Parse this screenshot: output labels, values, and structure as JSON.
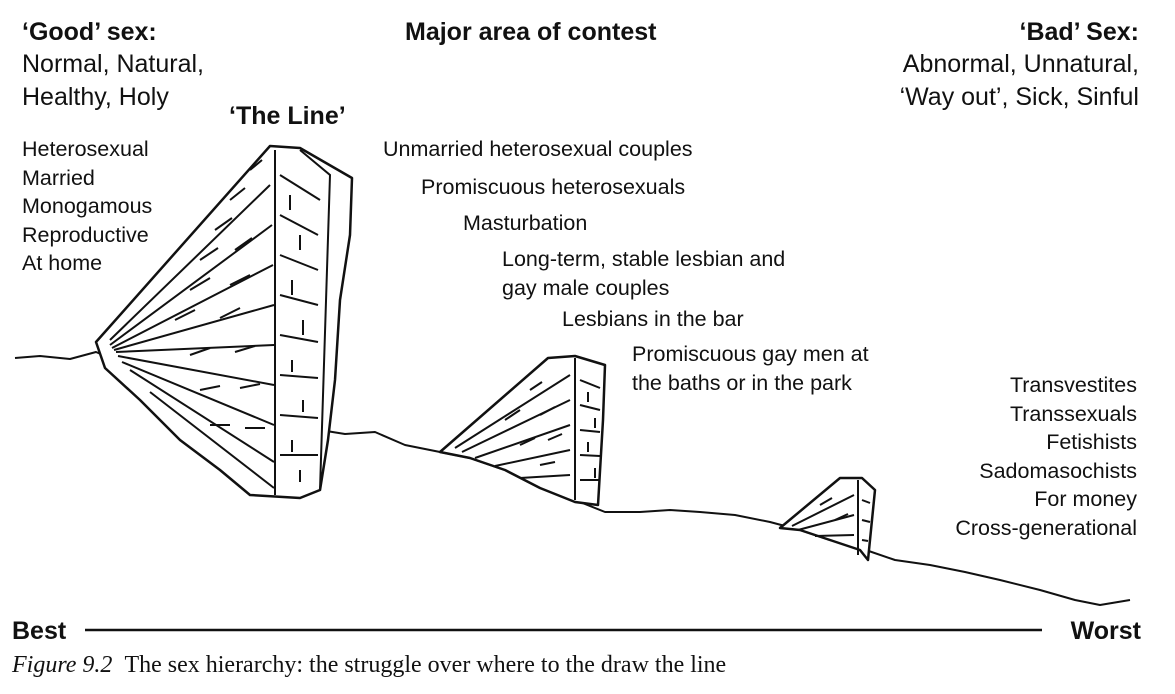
{
  "good": {
    "title": "‘Good’ sex:",
    "descriptors": [
      "Normal, Natural,",
      "Healthy, Holy"
    ],
    "items": [
      "Heterosexual",
      "Married",
      "Monogamous",
      "Reproductive",
      "At home"
    ]
  },
  "the_line_label": "‘The Line’",
  "contest": {
    "title": "Major area of contest",
    "items": [
      "Unmarried heterosexual couples",
      "Promiscuous heterosexuals",
      "Masturbation",
      "Long-term, stable lesbian and",
      "gay male couples",
      "Lesbians in the bar",
      "Promiscuous gay men at",
      "the baths or in the park"
    ]
  },
  "bad": {
    "title": "‘Bad’ Sex:",
    "descriptors": [
      "Abnormal, Unnatural,",
      "‘Way out’, Sick, Sinful"
    ],
    "items": [
      "Transvestites",
      "Transsexuals",
      "Fetishists",
      "Sadomasochists",
      "For money",
      "Cross-generational"
    ]
  },
  "scale": {
    "best": "Best",
    "worst": "Worst"
  },
  "caption": {
    "label": "Figure 9.2",
    "text": "The sex hierarchy: the struggle over where to the draw the line"
  }
}
